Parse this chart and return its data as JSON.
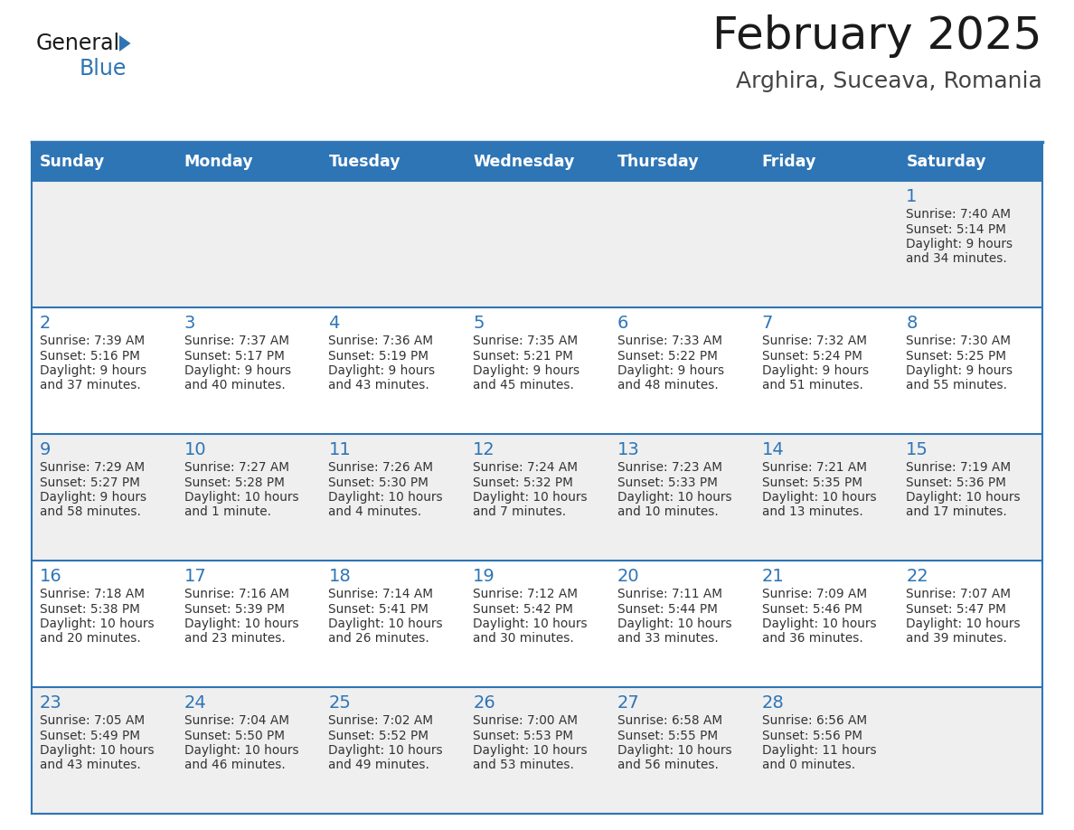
{
  "title": "February 2025",
  "subtitle": "Arghira, Suceava, Romania",
  "header_bg": "#2E75B6",
  "header_text_color": "#FFFFFF",
  "day_names": [
    "Sunday",
    "Monday",
    "Tuesday",
    "Wednesday",
    "Thursday",
    "Friday",
    "Saturday"
  ],
  "cell_bg_even": "#EFEFEF",
  "cell_bg_odd": "#FFFFFF",
  "cell_text_color": "#333333",
  "number_color": "#2E75B6",
  "border_color": "#2E75B6",
  "title_color": "#1A1A1A",
  "subtitle_color": "#444444",
  "logo_black": "#1A1A1A",
  "logo_blue": "#2E75B6",
  "calendar": [
    [
      null,
      null,
      null,
      null,
      null,
      null,
      {
        "day": "1",
        "sunrise": "7:40 AM",
        "sunset": "5:14 PM",
        "daylight_line1": "Daylight: 9 hours",
        "daylight_line2": "and 34 minutes."
      }
    ],
    [
      {
        "day": "2",
        "sunrise": "7:39 AM",
        "sunset": "5:16 PM",
        "daylight_line1": "Daylight: 9 hours",
        "daylight_line2": "and 37 minutes."
      },
      {
        "day": "3",
        "sunrise": "7:37 AM",
        "sunset": "5:17 PM",
        "daylight_line1": "Daylight: 9 hours",
        "daylight_line2": "and 40 minutes."
      },
      {
        "day": "4",
        "sunrise": "7:36 AM",
        "sunset": "5:19 PM",
        "daylight_line1": "Daylight: 9 hours",
        "daylight_line2": "and 43 minutes."
      },
      {
        "day": "5",
        "sunrise": "7:35 AM",
        "sunset": "5:21 PM",
        "daylight_line1": "Daylight: 9 hours",
        "daylight_line2": "and 45 minutes."
      },
      {
        "day": "6",
        "sunrise": "7:33 AM",
        "sunset": "5:22 PM",
        "daylight_line1": "Daylight: 9 hours",
        "daylight_line2": "and 48 minutes."
      },
      {
        "day": "7",
        "sunrise": "7:32 AM",
        "sunset": "5:24 PM",
        "daylight_line1": "Daylight: 9 hours",
        "daylight_line2": "and 51 minutes."
      },
      {
        "day": "8",
        "sunrise": "7:30 AM",
        "sunset": "5:25 PM",
        "daylight_line1": "Daylight: 9 hours",
        "daylight_line2": "and 55 minutes."
      }
    ],
    [
      {
        "day": "9",
        "sunrise": "7:29 AM",
        "sunset": "5:27 PM",
        "daylight_line1": "Daylight: 9 hours",
        "daylight_line2": "and 58 minutes."
      },
      {
        "day": "10",
        "sunrise": "7:27 AM",
        "sunset": "5:28 PM",
        "daylight_line1": "Daylight: 10 hours",
        "daylight_line2": "and 1 minute."
      },
      {
        "day": "11",
        "sunrise": "7:26 AM",
        "sunset": "5:30 PM",
        "daylight_line1": "Daylight: 10 hours",
        "daylight_line2": "and 4 minutes."
      },
      {
        "day": "12",
        "sunrise": "7:24 AM",
        "sunset": "5:32 PM",
        "daylight_line1": "Daylight: 10 hours",
        "daylight_line2": "and 7 minutes."
      },
      {
        "day": "13",
        "sunrise": "7:23 AM",
        "sunset": "5:33 PM",
        "daylight_line1": "Daylight: 10 hours",
        "daylight_line2": "and 10 minutes."
      },
      {
        "day": "14",
        "sunrise": "7:21 AM",
        "sunset": "5:35 PM",
        "daylight_line1": "Daylight: 10 hours",
        "daylight_line2": "and 13 minutes."
      },
      {
        "day": "15",
        "sunrise": "7:19 AM",
        "sunset": "5:36 PM",
        "daylight_line1": "Daylight: 10 hours",
        "daylight_line2": "and 17 minutes."
      }
    ],
    [
      {
        "day": "16",
        "sunrise": "7:18 AM",
        "sunset": "5:38 PM",
        "daylight_line1": "Daylight: 10 hours",
        "daylight_line2": "and 20 minutes."
      },
      {
        "day": "17",
        "sunrise": "7:16 AM",
        "sunset": "5:39 PM",
        "daylight_line1": "Daylight: 10 hours",
        "daylight_line2": "and 23 minutes."
      },
      {
        "day": "18",
        "sunrise": "7:14 AM",
        "sunset": "5:41 PM",
        "daylight_line1": "Daylight: 10 hours",
        "daylight_line2": "and 26 minutes."
      },
      {
        "day": "19",
        "sunrise": "7:12 AM",
        "sunset": "5:42 PM",
        "daylight_line1": "Daylight: 10 hours",
        "daylight_line2": "and 30 minutes."
      },
      {
        "day": "20",
        "sunrise": "7:11 AM",
        "sunset": "5:44 PM",
        "daylight_line1": "Daylight: 10 hours",
        "daylight_line2": "and 33 minutes."
      },
      {
        "day": "21",
        "sunrise": "7:09 AM",
        "sunset": "5:46 PM",
        "daylight_line1": "Daylight: 10 hours",
        "daylight_line2": "and 36 minutes."
      },
      {
        "day": "22",
        "sunrise": "7:07 AM",
        "sunset": "5:47 PM",
        "daylight_line1": "Daylight: 10 hours",
        "daylight_line2": "and 39 minutes."
      }
    ],
    [
      {
        "day": "23",
        "sunrise": "7:05 AM",
        "sunset": "5:49 PM",
        "daylight_line1": "Daylight: 10 hours",
        "daylight_line2": "and 43 minutes."
      },
      {
        "day": "24",
        "sunrise": "7:04 AM",
        "sunset": "5:50 PM",
        "daylight_line1": "Daylight: 10 hours",
        "daylight_line2": "and 46 minutes."
      },
      {
        "day": "25",
        "sunrise": "7:02 AM",
        "sunset": "5:52 PM",
        "daylight_line1": "Daylight: 10 hours",
        "daylight_line2": "and 49 minutes."
      },
      {
        "day": "26",
        "sunrise": "7:00 AM",
        "sunset": "5:53 PM",
        "daylight_line1": "Daylight: 10 hours",
        "daylight_line2": "and 53 minutes."
      },
      {
        "day": "27",
        "sunrise": "6:58 AM",
        "sunset": "5:55 PM",
        "daylight_line1": "Daylight: 10 hours",
        "daylight_line2": "and 56 minutes."
      },
      {
        "day": "28",
        "sunrise": "6:56 AM",
        "sunset": "5:56 PM",
        "daylight_line1": "Daylight: 11 hours",
        "daylight_line2": "and 0 minutes."
      },
      null
    ]
  ]
}
